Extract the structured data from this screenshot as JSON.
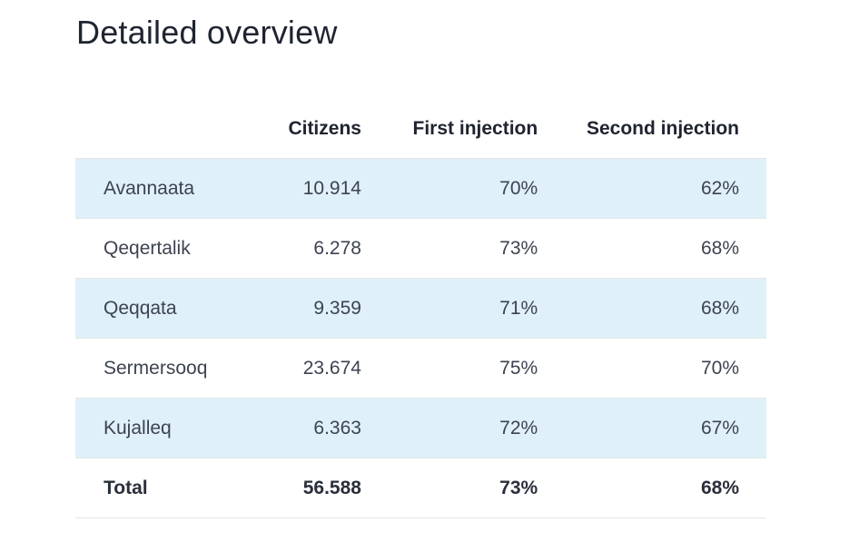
{
  "title": "Detailed overview",
  "table": {
    "headers": {
      "region": "",
      "citizens": "Citizens",
      "first": "First injection",
      "second": "Second injection"
    },
    "rows": [
      {
        "region": "Avannaata",
        "citizens": "10.914",
        "first": "70%",
        "second": "62%"
      },
      {
        "region": "Qeqertalik",
        "citizens": "6.278",
        "first": "73%",
        "second": "68%"
      },
      {
        "region": "Qeqqata",
        "citizens": "9.359",
        "first": "71%",
        "second": "68%"
      },
      {
        "region": "Sermersooq",
        "citizens": "23.674",
        "first": "75%",
        "second": "70%"
      },
      {
        "region": "Kujalleq",
        "citizens": "6.363",
        "first": "72%",
        "second": "67%"
      }
    ],
    "total": {
      "region": "Total",
      "citizens": "56.588",
      "first": "73%",
      "second": "68%"
    }
  },
  "colors": {
    "alt_row": "#dff0f9",
    "heading": "#1f2430",
    "text": "#3d4350"
  }
}
